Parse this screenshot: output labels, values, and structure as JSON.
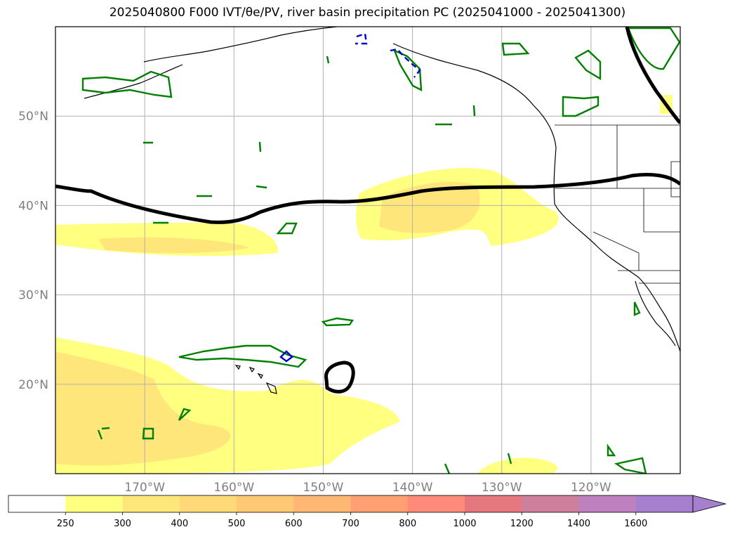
{
  "title": "2025040800 F000 IVT/θe/PV, river basin precipitation PC (2025041000 - 2025041300)",
  "map": {
    "lon_range": [
      -180,
      -110
    ],
    "lat_range": [
      10,
      60
    ],
    "lon_ticks": [
      {
        "value": -170,
        "label": "170°W"
      },
      {
        "value": -160,
        "label": "160°W"
      },
      {
        "value": -150,
        "label": "150°W"
      },
      {
        "value": -140,
        "label": "140°W"
      },
      {
        "value": -130,
        "label": "130°W"
      },
      {
        "value": -120,
        "label": "120°W"
      }
    ],
    "lat_ticks": [
      {
        "value": 20,
        "label": "20°N"
      },
      {
        "value": 30,
        "label": "30°N"
      },
      {
        "value": 40,
        "label": "40°N"
      },
      {
        "value": 50,
        "label": "50°N"
      }
    ],
    "gridlines": true
  },
  "colorbar": {
    "labels": [
      "250",
      "300",
      "400",
      "500",
      "600",
      "700",
      "800",
      "1000",
      "1200",
      "1400",
      "1600"
    ],
    "colors": [
      "#ffffff",
      "#ffff80",
      "#ffe67a",
      "#ffd877",
      "#ffc875",
      "#ffb774",
      "#ffa072",
      "#fe8a7a",
      "#e5787f",
      "#ce7f9c",
      "#bf80bf",
      "#a77fcf"
    ],
    "extend": "max"
  },
  "colors": {
    "pv_contour": "#008000",
    "theta_e_contour": "#0000cc",
    "ivt_contour": "#000000",
    "coastline": "#000000",
    "grid": "#b0b0b0"
  }
}
